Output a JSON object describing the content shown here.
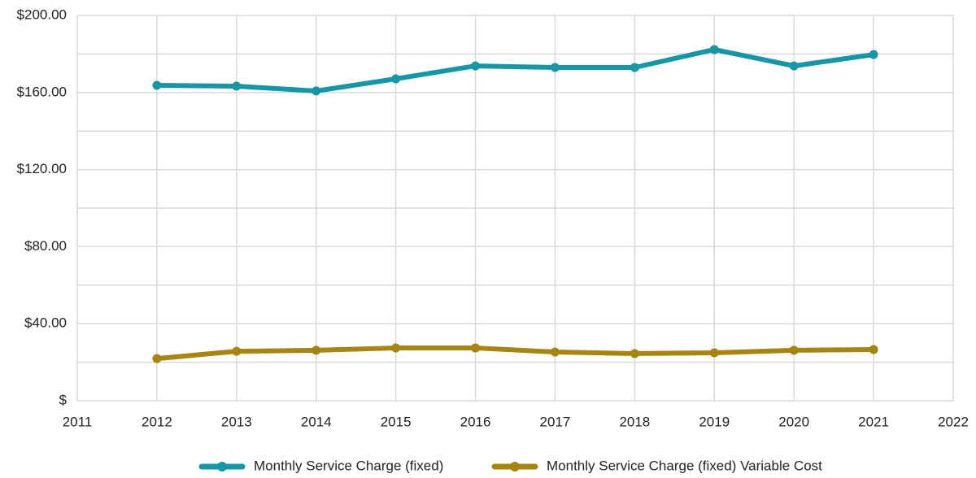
{
  "chart_data": {
    "type": "line",
    "x": [
      2012,
      2013,
      2014,
      2015,
      2016,
      2017,
      2018,
      2019,
      2020,
      2021
    ],
    "series": [
      {
        "name": "Monthly Service Charge (fixed)",
        "color": "#1796a6",
        "values": [
          163.7,
          163.3,
          160.8,
          167.1,
          173.8,
          173.0,
          173.0,
          182.3,
          173.8,
          179.7
        ]
      },
      {
        "name": "Monthly Service Charge (fixed) Variable Cost",
        "color": "#a88410",
        "values": [
          21.9,
          25.7,
          26.2,
          27.4,
          27.4,
          25.3,
          24.5,
          24.9,
          26.2,
          26.6
        ]
      }
    ],
    "xlim": [
      2011,
      2022
    ],
    "xticks": [
      2011,
      2012,
      2013,
      2014,
      2015,
      2016,
      2017,
      2018,
      2019,
      2020,
      2021,
      2022
    ],
    "ylim": [
      0,
      200
    ],
    "yticks": [
      {
        "value": 0,
        "label": "$"
      },
      {
        "value": 40,
        "label": "$40.00"
      },
      {
        "value": 80,
        "label": "$80.00"
      },
      {
        "value": 120,
        "label": "$120.00"
      },
      {
        "value": 160,
        "label": "$160.00"
      },
      {
        "value": 200,
        "label": "$200.00"
      }
    ],
    "minor_yticks": [
      20,
      60,
      100,
      140,
      180
    ],
    "grid": true,
    "legend": "bottom"
  }
}
